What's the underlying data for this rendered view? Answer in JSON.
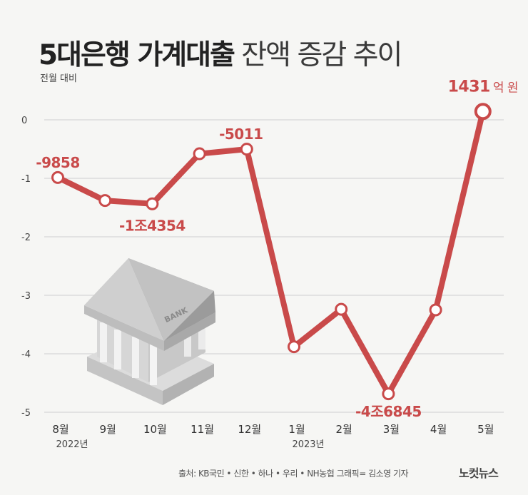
{
  "title": {
    "bold": "5대은행 가계대출",
    "light": "잔액 증감 추이"
  },
  "subtitle": "전월 대비",
  "footer": {
    "source": "출처: KB국민 • 신한 • 하나 • 우리 • NH농협   그래픽= 김소영 기자",
    "logo": "노컷뉴스"
  },
  "chart_data": {
    "type": "line",
    "categories": [
      "8월",
      "9월",
      "10월",
      "11월",
      "12월",
      "1월",
      "2월",
      "3월",
      "4월",
      "5월"
    ],
    "year_labels": [
      "2022년",
      "",
      "",
      "",
      "",
      "2023년",
      "",
      "",
      "",
      ""
    ],
    "values": [
      -0.9858,
      -1.38,
      -1.4354,
      -0.58,
      -0.5011,
      -3.88,
      -3.24,
      -4.6845,
      -3.25,
      0.1431
    ],
    "data_labels": [
      "-9858",
      "",
      "-1조4354",
      "",
      "-5011",
      "",
      "",
      "-4조6845",
      "",
      "1431억 원"
    ],
    "ylim": [
      -5,
      0
    ],
    "yticks": [
      0,
      -1,
      -2,
      -3,
      -4,
      -5
    ],
    "grid": true,
    "colors": {
      "line": "#c94a4a",
      "label": "#c94a4a",
      "grid": "#cfcfcf"
    }
  }
}
